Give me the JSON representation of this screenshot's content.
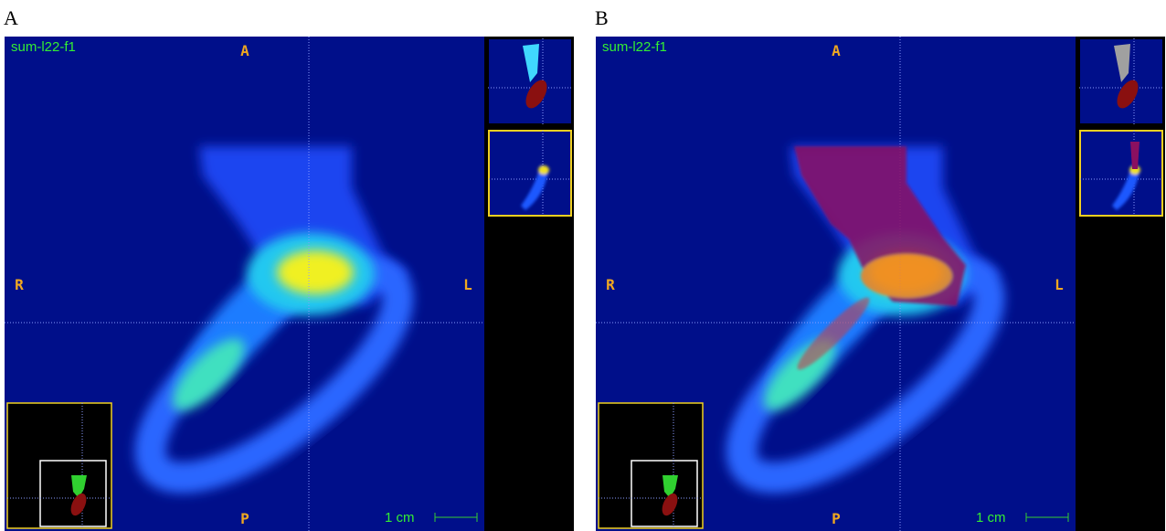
{
  "panels": [
    {
      "label": "A",
      "series_label": "sum-l22-f1",
      "orient": {
        "top": "A",
        "bottom": "P",
        "left": "R",
        "right": "L"
      },
      "scale": "1 cm"
    },
    {
      "label": "B",
      "series_label": "sum-l22-f1",
      "orient": {
        "top": "A",
        "bottom": "P",
        "left": "R",
        "right": "L"
      },
      "scale": "1 cm"
    }
  ]
}
